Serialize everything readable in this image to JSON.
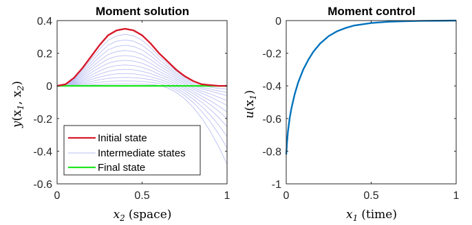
{
  "chart_data": [
    {
      "type": "line",
      "title": "Moment solution",
      "xlabel": {
        "var": "x",
        "sub": "2",
        "unit": "(space)"
      },
      "ylabel": {
        "var": "y",
        "args": "(x",
        "sub1": "1",
        "mid": ", x",
        "sub2": "2",
        "close": ")"
      },
      "xlim": [
        0,
        1
      ],
      "ylim": [
        -0.6,
        0.4
      ],
      "xticks": [
        0,
        0.5,
        1
      ],
      "xtick_labels": [
        "0",
        "0.5",
        "1"
      ],
      "yticks": [
        0.4,
        0.2,
        0,
        -0.2,
        -0.4,
        -0.6
      ],
      "ytick_labels": [
        "0.4",
        "0.2",
        "0",
        "-0.2",
        "-0.4",
        "-0.6"
      ],
      "legend_position": "bottom-left",
      "legend": [
        "Initial state",
        "Intermediate states",
        "Final state"
      ],
      "colors": {
        "initial": "#d7192b",
        "intermediate": "#b9bff2",
        "final": "#1fe61f"
      },
      "initial_state": {
        "x": [
          0,
          0.05,
          0.1,
          0.15,
          0.2,
          0.25,
          0.3,
          0.35,
          0.4,
          0.45,
          0.5,
          0.55,
          0.6,
          0.65,
          0.7,
          0.75,
          0.8,
          0.85,
          0.9,
          0.95,
          1
        ],
        "y": [
          0,
          0.01,
          0.05,
          0.11,
          0.18,
          0.25,
          0.31,
          0.34,
          0.35,
          0.34,
          0.31,
          0.26,
          0.2,
          0.15,
          0.1,
          0.06,
          0.03,
          0.01,
          0.005,
          0,
          0
        ]
      },
      "intermediate_end_values": [
        0.0,
        -0.02,
        -0.04,
        -0.06,
        -0.09,
        -0.12,
        -0.16,
        -0.2,
        -0.25,
        -0.31,
        -0.38,
        -0.48
      ],
      "final_state": {
        "x": [
          0,
          1
        ],
        "y": [
          0,
          0
        ]
      }
    },
    {
      "type": "line",
      "title": "Moment control",
      "xlabel": {
        "var": "x",
        "sub": "1",
        "unit": "(time)"
      },
      "ylabel": {
        "var": "u",
        "args": "(x",
        "sub1": "1",
        "close": ")"
      },
      "xlim": [
        0,
        1
      ],
      "ylim": [
        -1,
        0
      ],
      "xticks": [
        0,
        0.5,
        1
      ],
      "xtick_labels": [
        "0",
        "0.5",
        "1"
      ],
      "yticks": [
        0,
        -0.2,
        -0.4,
        -0.6,
        -0.8,
        -1
      ],
      "ytick_labels": [
        "0",
        "-0.2",
        "-0.4",
        "-0.6",
        "-0.8",
        "-1"
      ],
      "series_color": "#0072bd",
      "x": [
        0,
        0.005,
        0.01,
        0.02,
        0.03,
        0.05,
        0.07,
        0.1,
        0.13,
        0.16,
        0.2,
        0.25,
        0.3,
        0.35,
        0.4,
        0.5,
        0.6,
        0.7,
        0.8,
        0.9,
        1
      ],
      "y": [
        -0.82,
        -0.74,
        -0.68,
        -0.6,
        -0.54,
        -0.45,
        -0.38,
        -0.3,
        -0.24,
        -0.19,
        -0.14,
        -0.095,
        -0.065,
        -0.045,
        -0.03,
        -0.015,
        -0.007,
        -0.004,
        -0.002,
        -0.001,
        0
      ]
    }
  ]
}
